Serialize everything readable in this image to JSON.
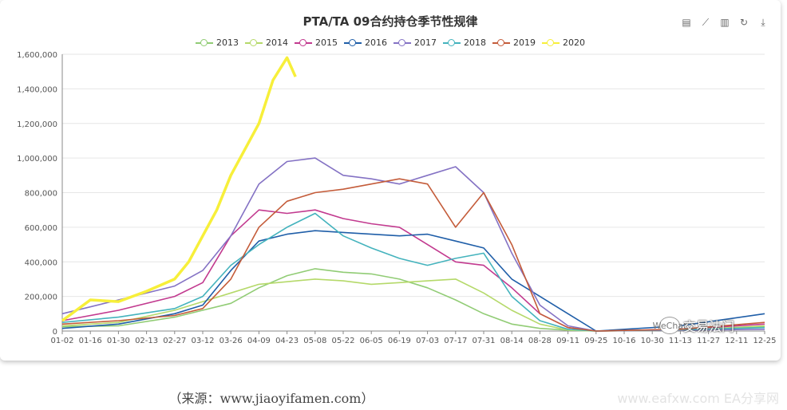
{
  "chart_data": {
    "type": "line",
    "title": "PTA/TA 09合约持仓季节性规律",
    "categories": [
      "01-02",
      "01-16",
      "01-30",
      "02-13",
      "02-27",
      "03-12",
      "03-26",
      "04-09",
      "04-23",
      "05-08",
      "05-22",
      "06-05",
      "06-19",
      "07-03",
      "07-17",
      "07-31",
      "08-14",
      "08-28",
      "09-11",
      "09-25",
      "10-16",
      "10-30",
      "11-13",
      "11-27",
      "12-11",
      "12-25"
    ],
    "ylim": [
      0,
      1600000
    ],
    "yticks": [
      "0",
      "200,000",
      "400,000",
      "600,000",
      "800,000",
      "1,000,000",
      "1,200,000",
      "1,400,000",
      "1,600,000"
    ],
    "legend_position": "top-center",
    "grid": true,
    "series": [
      {
        "name": "2013",
        "color": "#91cc75",
        "points": [
          [
            0,
            25000
          ],
          [
            2,
            30000
          ],
          [
            4,
            80000
          ],
          [
            6,
            160000
          ],
          [
            7,
            250000
          ],
          [
            8,
            320000
          ],
          [
            9,
            360000
          ],
          [
            10,
            340000
          ],
          [
            11,
            330000
          ],
          [
            12,
            300000
          ],
          [
            13,
            250000
          ],
          [
            14,
            180000
          ],
          [
            15,
            100000
          ],
          [
            16,
            40000
          ],
          [
            17,
            15000
          ],
          [
            18,
            5000
          ],
          [
            19,
            0
          ],
          [
            22,
            5000
          ],
          [
            25,
            25000
          ]
        ]
      },
      {
        "name": "2014",
        "color": "#b5d96a",
        "points": [
          [
            0,
            30000
          ],
          [
            2,
            50000
          ],
          [
            4,
            120000
          ],
          [
            6,
            220000
          ],
          [
            7,
            270000
          ],
          [
            8,
            285000
          ],
          [
            9,
            300000
          ],
          [
            10,
            290000
          ],
          [
            11,
            270000
          ],
          [
            12,
            280000
          ],
          [
            13,
            290000
          ],
          [
            14,
            300000
          ],
          [
            15,
            220000
          ],
          [
            16,
            120000
          ],
          [
            17,
            40000
          ],
          [
            18,
            5000
          ],
          [
            19,
            0
          ],
          [
            22,
            5000
          ],
          [
            25,
            30000
          ]
        ]
      },
      {
        "name": "2015",
        "color": "#c23a8f",
        "points": [
          [
            0,
            60000
          ],
          [
            2,
            120000
          ],
          [
            4,
            200000
          ],
          [
            5,
            280000
          ],
          [
            6,
            550000
          ],
          [
            7,
            700000
          ],
          [
            8,
            680000
          ],
          [
            9,
            700000
          ],
          [
            10,
            650000
          ],
          [
            11,
            620000
          ],
          [
            12,
            600000
          ],
          [
            13,
            500000
          ],
          [
            14,
            400000
          ],
          [
            15,
            380000
          ],
          [
            16,
            250000
          ],
          [
            17,
            100000
          ],
          [
            18,
            20000
          ],
          [
            19,
            0
          ],
          [
            22,
            10000
          ],
          [
            25,
            40000
          ]
        ]
      },
      {
        "name": "2016",
        "color": "#1f5ea8",
        "points": [
          [
            0,
            15000
          ],
          [
            2,
            40000
          ],
          [
            4,
            100000
          ],
          [
            5,
            150000
          ],
          [
            6,
            350000
          ],
          [
            7,
            520000
          ],
          [
            8,
            560000
          ],
          [
            9,
            580000
          ],
          [
            10,
            570000
          ],
          [
            11,
            560000
          ],
          [
            12,
            550000
          ],
          [
            13,
            560000
          ],
          [
            14,
            520000
          ],
          [
            15,
            480000
          ],
          [
            16,
            300000
          ],
          [
            17,
            200000
          ],
          [
            18,
            100000
          ],
          [
            19,
            0
          ],
          [
            22,
            30000
          ],
          [
            25,
            100000
          ]
        ]
      },
      {
        "name": "2017",
        "color": "#8472c4",
        "points": [
          [
            0,
            100000
          ],
          [
            2,
            180000
          ],
          [
            4,
            260000
          ],
          [
            5,
            350000
          ],
          [
            6,
            550000
          ],
          [
            7,
            850000
          ],
          [
            8,
            980000
          ],
          [
            9,
            1000000
          ],
          [
            10,
            900000
          ],
          [
            11,
            880000
          ],
          [
            12,
            850000
          ],
          [
            13,
            900000
          ],
          [
            14,
            950000
          ],
          [
            15,
            800000
          ],
          [
            16,
            450000
          ],
          [
            17,
            150000
          ],
          [
            18,
            30000
          ],
          [
            19,
            0
          ],
          [
            22,
            5000
          ],
          [
            25,
            10000
          ]
        ]
      },
      {
        "name": "2018",
        "color": "#44b3bd",
        "points": [
          [
            0,
            50000
          ],
          [
            2,
            80000
          ],
          [
            4,
            130000
          ],
          [
            5,
            200000
          ],
          [
            6,
            380000
          ],
          [
            7,
            500000
          ],
          [
            8,
            600000
          ],
          [
            9,
            680000
          ],
          [
            10,
            550000
          ],
          [
            11,
            480000
          ],
          [
            12,
            420000
          ],
          [
            13,
            380000
          ],
          [
            14,
            420000
          ],
          [
            15,
            450000
          ],
          [
            16,
            200000
          ],
          [
            17,
            60000
          ],
          [
            18,
            10000
          ],
          [
            19,
            0
          ],
          [
            22,
            8000
          ],
          [
            25,
            20000
          ]
        ]
      },
      {
        "name": "2019",
        "color": "#c45c3a",
        "points": [
          [
            0,
            40000
          ],
          [
            2,
            60000
          ],
          [
            4,
            90000
          ],
          [
            5,
            130000
          ],
          [
            6,
            300000
          ],
          [
            7,
            600000
          ],
          [
            8,
            750000
          ],
          [
            9,
            800000
          ],
          [
            10,
            820000
          ],
          [
            11,
            850000
          ],
          [
            12,
            880000
          ],
          [
            13,
            850000
          ],
          [
            14,
            600000
          ],
          [
            15,
            800000
          ],
          [
            16,
            500000
          ],
          [
            17,
            100000
          ],
          [
            18,
            20000
          ],
          [
            19,
            0
          ],
          [
            22,
            10000
          ],
          [
            25,
            50000
          ]
        ]
      },
      {
        "name": "2020",
        "color": "#f7ef3a",
        "width": 3.5,
        "points": [
          [
            0,
            60000
          ],
          [
            0.5,
            120000
          ],
          [
            1,
            180000
          ],
          [
            2,
            170000
          ],
          [
            3,
            230000
          ],
          [
            4,
            300000
          ],
          [
            4.5,
            400000
          ],
          [
            5,
            550000
          ],
          [
            5.5,
            700000
          ],
          [
            6,
            900000
          ],
          [
            6.5,
            1050000
          ],
          [
            7,
            1200000
          ],
          [
            7.5,
            1450000
          ],
          [
            8,
            1580000
          ],
          [
            8.3,
            1470000
          ]
        ]
      }
    ]
  },
  "toolbox": {
    "icons": [
      "data-view-icon",
      "line-chart-icon",
      "bar-chart-icon",
      "restore-icon",
      "download-icon"
    ],
    "glyphs": [
      "▤",
      "⟋",
      "▥",
      "↻",
      "⤓"
    ]
  },
  "badge": {
    "wechat": "WeChat",
    "label": "交易法门"
  },
  "caption": "（来源：www.jiaoyifamen.com）",
  "watermark": "www.eafxw.com  EA分享网"
}
